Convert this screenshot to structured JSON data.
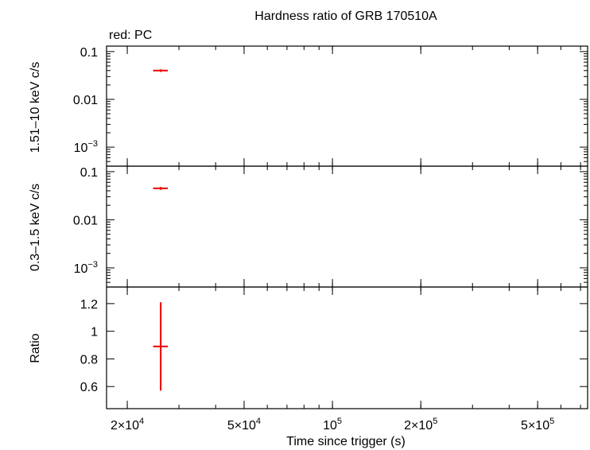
{
  "chart_data": [
    {
      "type": "scatter",
      "title": "Hardness ratio of GRB 170510A",
      "legend": "red: PC",
      "ylabel": "1.51–10 keV c/s",
      "yscale": "log",
      "ylim": [
        0.0004,
        0.13
      ],
      "yticks": [
        {
          "v": 0.1,
          "label": "0.1"
        },
        {
          "v": 0.01,
          "label": "0.01"
        },
        {
          "v": 0.001,
          "label": "10",
          "sup": "−3"
        }
      ],
      "series": [
        {
          "name": "PC",
          "color": "#ee0000",
          "points": [
            {
              "x": 26000,
              "y": 0.04,
              "xerr": [
                24500,
                27500
              ],
              "yerr": [
                0.0375,
                0.0425
              ]
            }
          ]
        }
      ]
    },
    {
      "type": "scatter",
      "ylabel": "0.3–1.5 keV c/s",
      "yscale": "log",
      "ylim": [
        0.0004,
        0.13
      ],
      "yticks": [
        {
          "v": 0.1,
          "label": "0.1"
        },
        {
          "v": 0.01,
          "label": "0.01"
        },
        {
          "v": 0.001,
          "label": "10",
          "sup": "−3"
        }
      ],
      "series": [
        {
          "name": "PC",
          "color": "#ee0000",
          "points": [
            {
              "x": 26000,
              "y": 0.045,
              "xerr": [
                24500,
                27500
              ],
              "yerr": [
                0.042,
                0.048
              ]
            }
          ]
        }
      ]
    },
    {
      "type": "scatter",
      "ylabel": "Ratio",
      "yscale": "linear",
      "ylim": [
        0.44,
        1.32
      ],
      "yticks": [
        {
          "v": 1.2,
          "label": "1.2"
        },
        {
          "v": 1.0,
          "label": "1"
        },
        {
          "v": 0.8,
          "label": "0.8"
        },
        {
          "v": 0.6,
          "label": "0.6"
        }
      ],
      "series": [
        {
          "name": "PC",
          "color": "#ee0000",
          "points": [
            {
              "x": 26000,
              "y": 0.89,
              "xerr": [
                24500,
                27500
              ],
              "yerr": [
                0.57,
                1.21
              ]
            }
          ]
        }
      ]
    }
  ],
  "x_axis": {
    "label": "Time since trigger (s)",
    "scale": "log",
    "xlim": [
      17000,
      740000
    ],
    "ticks": [
      {
        "v": 20000,
        "label": "2×10",
        "sup": "4"
      },
      {
        "v": 50000,
        "label": "5×10",
        "sup": "4"
      },
      {
        "v": 100000,
        "label": "10",
        "sup": "5"
      },
      {
        "v": 200000,
        "label": "2×10",
        "sup": "5"
      },
      {
        "v": 500000,
        "label": "5×10",
        "sup": "5"
      }
    ]
  }
}
